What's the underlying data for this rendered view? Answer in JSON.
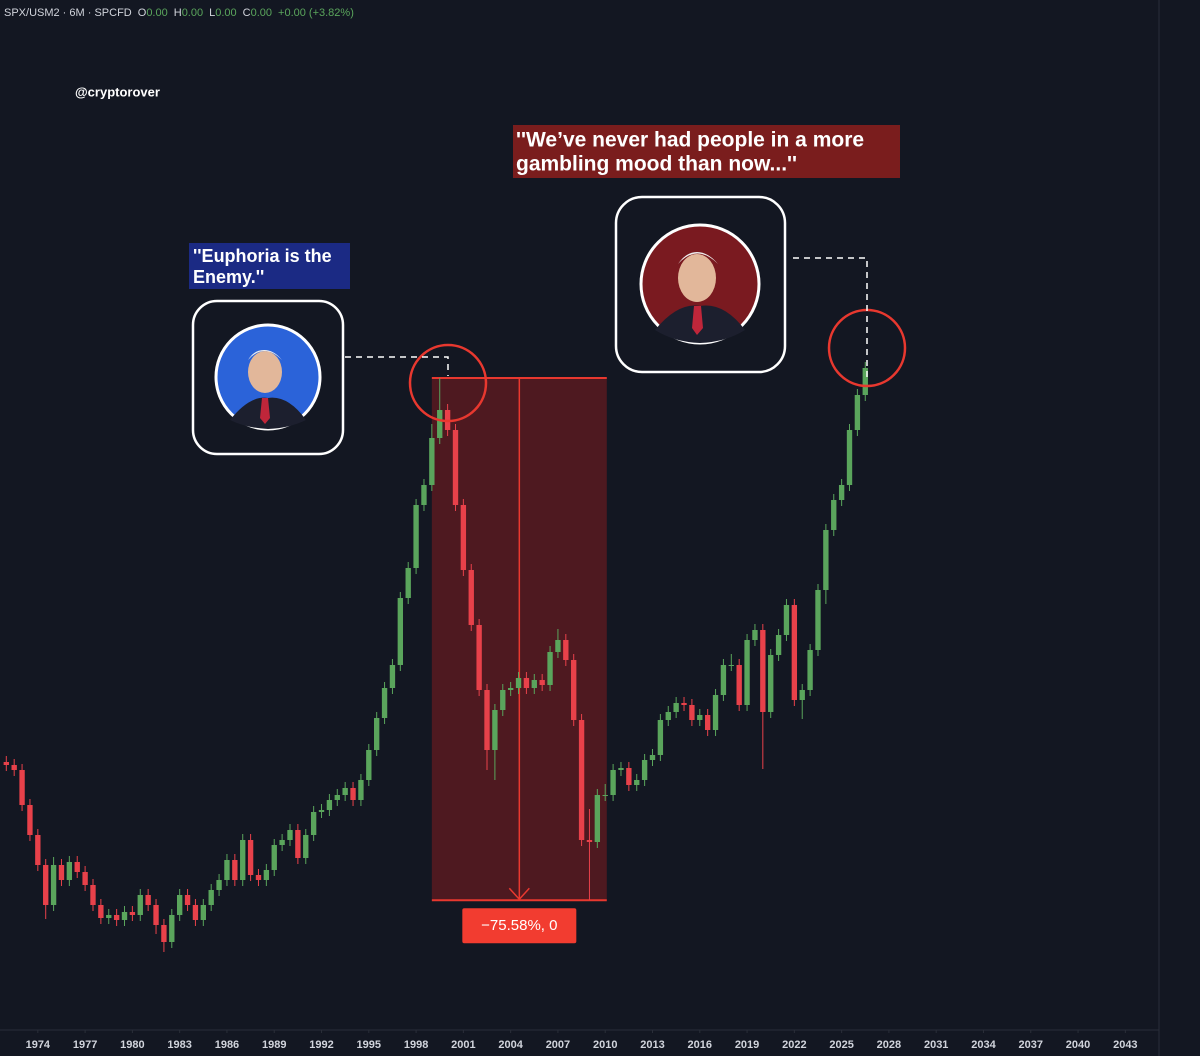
{
  "chart_data": {
    "type": "candlestick",
    "legend": {
      "symbol": "SPX/USM2 · 6M · SPCFD",
      "fields": [
        {
          "label": "O",
          "value": "0.00"
        },
        {
          "label": "H",
          "value": "0.00"
        },
        {
          "label": "L",
          "value": "0.00"
        },
        {
          "label": "C",
          "value": "0.00"
        }
      ],
      "change": "+0.00 (+3.82%)"
    },
    "watermark": "@cryptorover",
    "quotes": [
      {
        "lines": [
          "''Euphoria is the",
          "Enemy.''"
        ],
        "color": "#1b2a84"
      },
      {
        "lines": [
          "''We’ve never had people in a more",
          "gambling mood than now...''"
        ],
        "color": "#7a1d1d"
      }
    ],
    "up_color": "#5aa55c",
    "down_color": "#e8414a",
    "x": [
      1972,
      1972.5,
      1973,
      1973.5,
      1974,
      1974.5,
      1975,
      1975.5,
      1976,
      1976.5,
      1977,
      1977.5,
      1978,
      1978.5,
      1979,
      1979.5,
      1980,
      1980.5,
      1981,
      1981.5,
      1982,
      1982.5,
      1983,
      1983.5,
      1984,
      1984.5,
      1985,
      1985.5,
      1986,
      1986.5,
      1987,
      1987.5,
      1988,
      1988.5,
      1989,
      1989.5,
      1990,
      1990.5,
      1991,
      1991.5,
      1992,
      1992.5,
      1993,
      1993.5,
      1994,
      1994.5,
      1995,
      1995.5,
      1996,
      1996.5,
      1997,
      1997.5,
      1998,
      1998.5,
      1999,
      1999.5,
      2000,
      2000.5,
      2001,
      2001.5,
      2002,
      2002.5,
      2003,
      2003.5,
      2004,
      2004.5,
      2005,
      2005.5,
      2006,
      2006.5,
      2007,
      2007.5,
      2008,
      2008.5,
      2009,
      2009.5,
      2010,
      2010.5,
      2011,
      2011.5,
      2012,
      2012.5,
      2013,
      2013.5,
      2014,
      2014.5,
      2015,
      2015.5,
      2016,
      2016.5,
      2017,
      2017.5,
      2018,
      2018.5,
      2019,
      2019.5,
      2020,
      2020.5,
      2021,
      2021.5,
      2022,
      2022.5,
      2023,
      2023.5,
      2024,
      2024.5,
      2025,
      2025.5,
      2026,
      2026.5
    ],
    "open": [
      307,
      304,
      299,
      264,
      234,
      204,
      164,
      204,
      189,
      207,
      197,
      184,
      164,
      151,
      154,
      149,
      157,
      154,
      174,
      164,
      144,
      127,
      154,
      174,
      164,
      149,
      164,
      179,
      189,
      209,
      189,
      229,
      194,
      189,
      199,
      224,
      229,
      239,
      211,
      234,
      257,
      259,
      269,
      274,
      281,
      269,
      289,
      319,
      351,
      381,
      404,
      471,
      501,
      564,
      584,
      631,
      659,
      639,
      564,
      499,
      444,
      379,
      319,
      359,
      379,
      381,
      391,
      381,
      389,
      384,
      417,
      429,
      409,
      349,
      229,
      227,
      274,
      274,
      299,
      301,
      284,
      289,
      309,
      314,
      349,
      357,
      366,
      364,
      349,
      354,
      339,
      374,
      404,
      404,
      364,
      429,
      439,
      357,
      414,
      434,
      464,
      369,
      379,
      419,
      479,
      539,
      569,
      584,
      639,
      674
    ],
    "high": [
      313,
      310,
      305,
      270,
      240,
      210,
      212,
      210,
      213,
      213,
      203,
      190,
      170,
      160,
      160,
      163,
      163,
      180,
      180,
      170,
      150,
      160,
      180,
      180,
      170,
      170,
      185,
      195,
      215,
      215,
      235,
      235,
      200,
      205,
      230,
      235,
      245,
      245,
      240,
      263,
      265,
      275,
      280,
      287,
      287,
      295,
      325,
      357,
      387,
      410,
      477,
      507,
      570,
      590,
      645,
      691,
      665,
      645,
      570,
      505,
      450,
      385,
      365,
      385,
      387,
      397,
      397,
      395,
      395,
      423,
      440,
      435,
      415,
      355,
      260,
      280,
      285,
      305,
      307,
      307,
      295,
      315,
      320,
      355,
      363,
      372,
      372,
      370,
      360,
      360,
      380,
      410,
      415,
      410,
      435,
      445,
      445,
      420,
      440,
      470,
      470,
      385,
      425,
      485,
      545,
      575,
      590,
      645,
      680,
      707
    ],
    "low": [
      298,
      293,
      258,
      228,
      198,
      150,
      158,
      183,
      183,
      191,
      178,
      158,
      145,
      145,
      143,
      143,
      148,
      148,
      158,
      135,
      117,
      121,
      148,
      158,
      143,
      143,
      158,
      173,
      183,
      183,
      183,
      188,
      183,
      183,
      193,
      218,
      223,
      205,
      205,
      228,
      251,
      253,
      263,
      268,
      263,
      263,
      283,
      313,
      345,
      375,
      398,
      465,
      495,
      558,
      578,
      625,
      633,
      558,
      493,
      438,
      373,
      299,
      289,
      353,
      373,
      375,
      375,
      375,
      378,
      378,
      411,
      403,
      343,
      223,
      169,
      221,
      268,
      268,
      293,
      278,
      278,
      283,
      303,
      308,
      343,
      351,
      358,
      343,
      343,
      333,
      333,
      368,
      398,
      358,
      358,
      423,
      300,
      351,
      408,
      428,
      363,
      350,
      373,
      413,
      465,
      533,
      563,
      578,
      633,
      668
    ],
    "close": [
      304,
      299,
      264,
      234,
      204,
      164,
      204,
      189,
      207,
      197,
      184,
      164,
      151,
      154,
      149,
      157,
      154,
      174,
      164,
      144,
      127,
      154,
      174,
      164,
      149,
      164,
      179,
      189,
      209,
      189,
      229,
      194,
      189,
      199,
      224,
      229,
      239,
      211,
      234,
      257,
      259,
      269,
      274,
      281,
      269,
      289,
      319,
      351,
      381,
      404,
      471,
      501,
      564,
      584,
      631,
      659,
      639,
      564,
      499,
      444,
      379,
      319,
      359,
      379,
      381,
      391,
      381,
      389,
      384,
      417,
      429,
      409,
      349,
      229,
      227,
      274,
      274,
      299,
      301,
      284,
      289,
      309,
      314,
      349,
      357,
      366,
      364,
      349,
      354,
      339,
      374,
      404,
      404,
      364,
      429,
      439,
      357,
      414,
      434,
      464,
      369,
      379,
      419,
      479,
      539,
      569,
      584,
      639,
      674,
      701
    ],
    "xlim": [
      1971.6,
      2045.2
    ],
    "ylim": [
      39,
      1049
    ],
    "xticks": [
      1974,
      1977,
      1980,
      1983,
      1986,
      1989,
      1992,
      1995,
      1998,
      2001,
      2004,
      2007,
      2010,
      2013,
      2016,
      2019,
      2022,
      2025,
      2028,
      2031,
      2034,
      2037,
      2040,
      2043
    ],
    "measure": {
      "x": [
        1999,
        2010.1
      ],
      "from": 691,
      "to": 168.73,
      "label": "−75.58%, 0"
    }
  }
}
